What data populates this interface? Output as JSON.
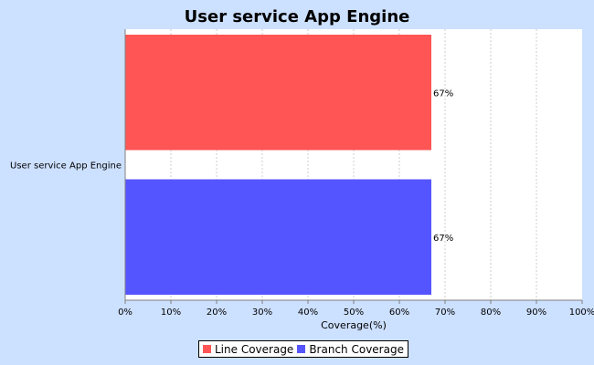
{
  "chart_data": {
    "type": "bar",
    "orientation": "horizontal",
    "title": "User service App Engine",
    "categories": [
      "User service App Engine"
    ],
    "series": [
      {
        "name": "Line Coverage",
        "values": [
          67
        ],
        "color": "#ff5555"
      },
      {
        "name": "Branch Coverage",
        "values": [
          67
        ],
        "color": "#5555ff"
      }
    ],
    "data_labels": [
      "67%",
      "67%"
    ],
    "xlabel": "Coverage(%)",
    "ylabel": "",
    "xlim": [
      0,
      100
    ],
    "x_ticks": [
      "0%",
      "10%",
      "20%",
      "30%",
      "40%",
      "50%",
      "60%",
      "70%",
      "80%",
      "90%",
      "100%"
    ],
    "grid": true,
    "legend_position": "bottom"
  },
  "colors": {
    "background": "#cce0ff",
    "plot_background": "#ffffff",
    "line_coverage": "#ff5555",
    "branch_coverage": "#5555ff"
  }
}
